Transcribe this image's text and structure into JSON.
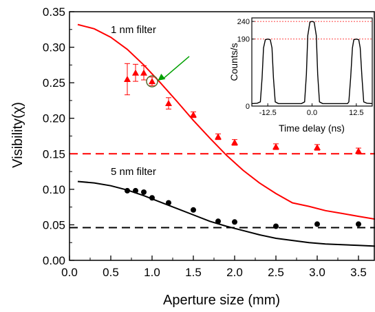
{
  "chart_data": [
    {
      "type": "scatter",
      "xlabel": "Aperture size (mm)",
      "ylabel": "Visibility(χ)",
      "xlim": [
        0.0,
        3.7
      ],
      "ylim": [
        0.0,
        0.35
      ],
      "xticks": [
        "0.0",
        "0.5",
        "1.0",
        "1.5",
        "2.0",
        "2.5",
        "3.0",
        "3.5"
      ],
      "yticks": [
        "0.00",
        "0.05",
        "0.10",
        "0.15",
        "0.20",
        "0.25",
        "0.30",
        "0.35"
      ],
      "grid": false,
      "annotations": [
        "1 nm filter",
        "5 nm filter"
      ],
      "series": [
        {
          "kind": "points",
          "marker": "triangle",
          "color": "#ff0000",
          "points": [
            {
              "x": 0.7,
              "y": 0.255,
              "err": 0.022
            },
            {
              "x": 0.8,
              "y": 0.264,
              "err": 0.012
            },
            {
              "x": 0.9,
              "y": 0.264,
              "err": 0.01
            },
            {
              "x": 1.0,
              "y": 0.252,
              "err": 0.006
            },
            {
              "x": 1.2,
              "y": 0.221,
              "err": 0.008
            },
            {
              "x": 1.5,
              "y": 0.205,
              "err": 0.004
            },
            {
              "x": 1.8,
              "y": 0.174,
              "err": 0.004
            },
            {
              "x": 2.0,
              "y": 0.166,
              "err": 0.004
            },
            {
              "x": 2.5,
              "y": 0.16,
              "err": 0.004
            },
            {
              "x": 3.0,
              "y": 0.159,
              "err": 0.004
            },
            {
              "x": 3.5,
              "y": 0.154,
              "err": 0.004
            }
          ]
        },
        {
          "kind": "points",
          "marker": "circle",
          "color": "#000000",
          "points": [
            {
              "x": 0.7,
              "y": 0.098
            },
            {
              "x": 0.8,
              "y": 0.098
            },
            {
              "x": 0.9,
              "y": 0.096
            },
            {
              "x": 1.0,
              "y": 0.088
            },
            {
              "x": 1.2,
              "y": 0.081
            },
            {
              "x": 1.5,
              "y": 0.071
            },
            {
              "x": 1.8,
              "y": 0.055
            },
            {
              "x": 2.0,
              "y": 0.054
            },
            {
              "x": 2.5,
              "y": 0.048
            },
            {
              "x": 3.0,
              "y": 0.051
            },
            {
              "x": 3.5,
              "y": 0.051
            }
          ]
        },
        {
          "kind": "curve",
          "color": "#ff0000",
          "x": [
            0.1,
            0.3,
            0.5,
            0.7,
            0.9,
            1.1,
            1.3,
            1.5,
            1.7,
            1.9,
            2.1,
            2.3,
            2.5,
            2.7,
            2.9,
            3.1,
            3.3,
            3.5,
            3.7
          ],
          "y": [
            0.332,
            0.326,
            0.314,
            0.297,
            0.275,
            0.25,
            0.224,
            0.197,
            0.172,
            0.148,
            0.127,
            0.109,
            0.094,
            0.081,
            0.076,
            0.07,
            0.066,
            0.062,
            0.058
          ]
        },
        {
          "kind": "curve",
          "color": "#000000",
          "x": [
            0.1,
            0.3,
            0.5,
            0.7,
            0.9,
            1.1,
            1.3,
            1.5,
            1.7,
            1.9,
            2.1,
            2.3,
            2.5,
            2.7,
            2.9,
            3.1,
            3.3,
            3.5,
            3.7
          ],
          "y": [
            0.111,
            0.109,
            0.105,
            0.099,
            0.091,
            0.082,
            0.073,
            0.064,
            0.055,
            0.048,
            0.042,
            0.036,
            0.031,
            0.028,
            0.025,
            0.023,
            0.022,
            0.021,
            0.02
          ]
        },
        {
          "kind": "hline",
          "color": "#ff0000",
          "y": 0.15
        },
        {
          "kind": "hline",
          "color": "#000000",
          "y": 0.046
        }
      ],
      "highlight": {
        "x": 1.0,
        "y": 0.252,
        "marker": "open-circle",
        "color": "#556b2f"
      },
      "arrow": {
        "color": "#00a000",
        "from": [
          1.45,
          0.287
        ],
        "to": [
          1.07,
          0.253
        ]
      }
    },
    {
      "type": "line",
      "xlabel": "Time delay (ns)",
      "ylabel": "Counts/s",
      "xlim": [
        -17,
        17
      ],
      "ylim": [
        0,
        250
      ],
      "xticks": [
        {
          "value": -12.5,
          "label": "-12.5"
        },
        {
          "value": 0.0,
          "label": "0.0"
        },
        {
          "value": 12.5,
          "label": "12.5"
        }
      ],
      "yticks": [
        {
          "value": 0,
          "label": "0"
        },
        {
          "value": 190,
          "label": "190"
        },
        {
          "value": 240,
          "label": "240"
        }
      ],
      "ref_lines": [
        {
          "y": 240,
          "color": "#ff0000"
        },
        {
          "y": 190,
          "color": "#ff0000"
        }
      ],
      "line_color": "#000000",
      "x": [
        -17.0,
        -15.5,
        -14.6,
        -14.1,
        -13.7,
        -13.2,
        -12.5,
        -11.8,
        -11.3,
        -10.9,
        -10.4,
        -9.5,
        -5.0,
        -3.0,
        -2.1,
        -1.6,
        -1.2,
        -0.6,
        0.0,
        0.6,
        1.2,
        1.6,
        2.1,
        3.0,
        7.0,
        10.0,
        10.4,
        10.9,
        11.4,
        11.8,
        12.5,
        13.2,
        13.6,
        14.1,
        14.6,
        15.5,
        17.0
      ],
      "y": [
        7,
        8,
        12,
        80,
        165,
        188,
        190,
        188,
        165,
        80,
        12,
        7,
        7,
        7,
        12,
        90,
        200,
        238,
        240,
        238,
        200,
        90,
        12,
        7,
        7,
        7,
        12,
        80,
        165,
        188,
        190,
        188,
        165,
        80,
        12,
        8,
        7
      ]
    }
  ]
}
